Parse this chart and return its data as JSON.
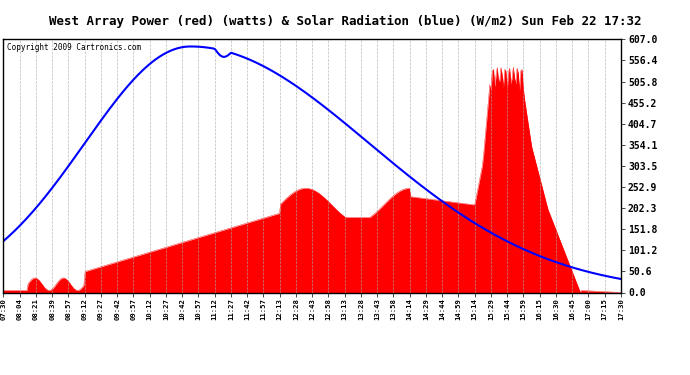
{
  "title": "West Array Power (red) (watts) & Solar Radiation (blue) (W/m2) Sun Feb 22 17:32",
  "copyright": "Copyright 2009 Cartronics.com",
  "yticks": [
    0.0,
    50.6,
    101.2,
    151.8,
    202.3,
    252.9,
    303.5,
    354.1,
    404.7,
    455.2,
    505.8,
    556.4,
    607.0
  ],
  "ymax": 607.0,
  "ymin": 0.0,
  "bg_color": "#ffffff",
  "plot_bg": "#ffffff",
  "grid_color": "#aaaaaa",
  "red_color": "#ff0000",
  "blue_color": "#0000ff",
  "title_bg": "#c0c0c0",
  "x_labels": [
    "07:30",
    "08:04",
    "08:21",
    "08:39",
    "08:57",
    "09:12",
    "09:27",
    "09:42",
    "09:57",
    "10:12",
    "10:27",
    "10:42",
    "10:57",
    "11:12",
    "11:27",
    "11:42",
    "11:57",
    "12:13",
    "12:28",
    "12:43",
    "12:58",
    "13:13",
    "13:28",
    "13:43",
    "13:58",
    "14:14",
    "14:29",
    "14:44",
    "14:59",
    "15:14",
    "15:29",
    "15:44",
    "15:59",
    "16:15",
    "16:30",
    "16:45",
    "17:00",
    "17:15",
    "17:30"
  ]
}
